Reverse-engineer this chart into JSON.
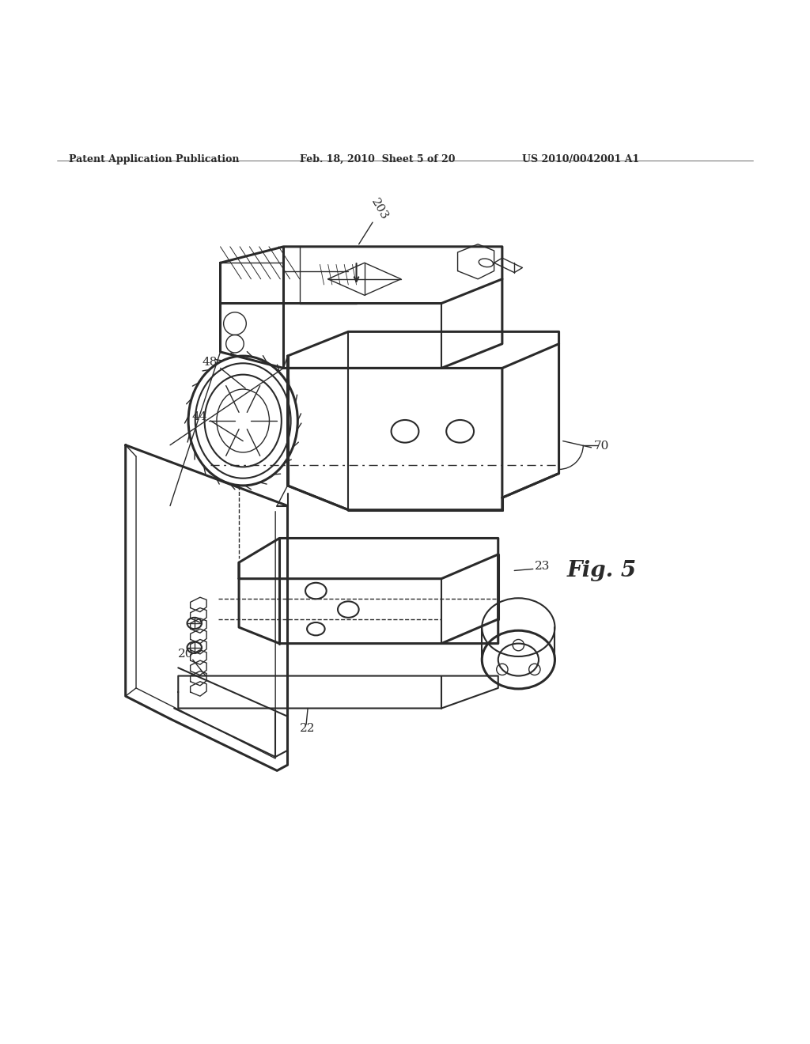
{
  "bg_color": "#ffffff",
  "line_color": "#2a2a2a",
  "header_left": "Patent Application Publication",
  "header_mid": "Feb. 18, 2010  Sheet 5 of 20",
  "header_right": "US 2010/0042001 A1",
  "fig_label": "Fig. 5",
  "figsize": [
    10.24,
    13.2
  ],
  "dpi": 100
}
